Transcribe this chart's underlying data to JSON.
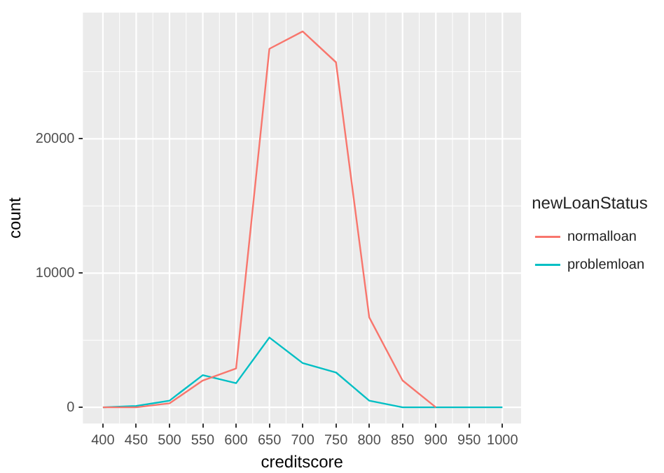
{
  "chart_data": {
    "type": "line",
    "xlabel": "creditscore",
    "ylabel": "count",
    "legend_title": "newLoanStatus",
    "x": [
      400,
      450,
      500,
      550,
      600,
      650,
      700,
      750,
      800,
      850,
      900,
      950,
      1000
    ],
    "series": [
      {
        "name": "normalloan",
        "color": "#f8766d",
        "values": [
          0,
          0,
          300,
          2000,
          2900,
          26700,
          28000,
          25700,
          6700,
          2000,
          0,
          null,
          null
        ]
      },
      {
        "name": "problemloan",
        "color": "#00bfc4",
        "values": [
          0,
          100,
          500,
          2400,
          1800,
          5200,
          3300,
          2600,
          500,
          0,
          0,
          0,
          0
        ]
      }
    ],
    "xlim": [
      370,
      1028
    ],
    "xticks": [
      400,
      450,
      500,
      550,
      600,
      650,
      700,
      750,
      800,
      850,
      900,
      950,
      1000
    ],
    "ylim": [
      -1200,
      29400
    ],
    "yticks": [
      0,
      10000,
      20000
    ],
    "grid": true,
    "legend": "right",
    "marker": "none",
    "line_style": "solid"
  }
}
